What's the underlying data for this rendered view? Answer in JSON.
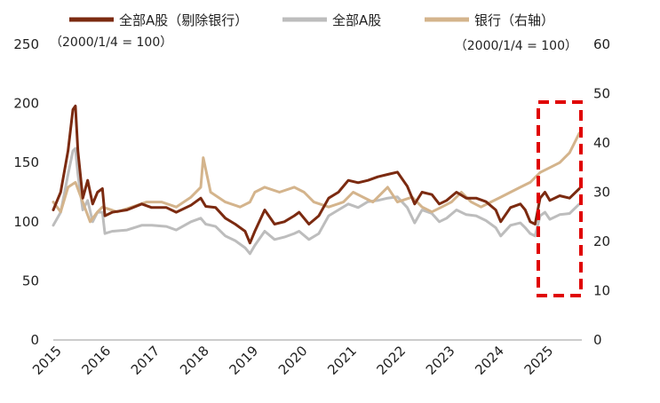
{
  "chart_data": {
    "type": "line",
    "x_ticks": [
      "2015",
      "2016",
      "2017",
      "2018",
      "2019",
      "2020",
      "2021",
      "2022",
      "2023",
      "2024",
      "2025"
    ],
    "x_range": [
      2015.0,
      2025.75
    ],
    "left_axis": {
      "range": [
        0,
        250
      ],
      "ticks": [
        "0",
        "50",
        "100",
        "150",
        "200",
        "250"
      ],
      "note": "（2000/1/4 = 100）"
    },
    "right_axis": {
      "range": [
        0,
        60
      ],
      "ticks": [
        "0",
        "10",
        "20",
        "30",
        "40",
        "50",
        "60"
      ],
      "note": "（2000/1/4 = 100）"
    },
    "legend_position": "top",
    "grid": false,
    "series": [
      {
        "name": "全部A股（剔除银行）",
        "axis": "left",
        "color": "#7B2A10",
        "points": [
          [
            2015.0,
            110
          ],
          [
            2015.15,
            125
          ],
          [
            2015.3,
            160
          ],
          [
            2015.4,
            195
          ],
          [
            2015.45,
            198
          ],
          [
            2015.5,
            160
          ],
          [
            2015.6,
            120
          ],
          [
            2015.7,
            135
          ],
          [
            2015.8,
            115
          ],
          [
            2015.9,
            125
          ],
          [
            2016.0,
            128
          ],
          [
            2016.05,
            105
          ],
          [
            2016.2,
            108
          ],
          [
            2016.5,
            110
          ],
          [
            2016.8,
            115
          ],
          [
            2017.0,
            112
          ],
          [
            2017.3,
            112
          ],
          [
            2017.5,
            108
          ],
          [
            2017.8,
            114
          ],
          [
            2018.0,
            120
          ],
          [
            2018.1,
            113
          ],
          [
            2018.3,
            112
          ],
          [
            2018.5,
            103
          ],
          [
            2018.7,
            98
          ],
          [
            2018.9,
            92
          ],
          [
            2019.0,
            82
          ],
          [
            2019.1,
            92
          ],
          [
            2019.3,
            110
          ],
          [
            2019.5,
            98
          ],
          [
            2019.7,
            100
          ],
          [
            2019.9,
            105
          ],
          [
            2020.0,
            108
          ],
          [
            2020.2,
            98
          ],
          [
            2020.4,
            105
          ],
          [
            2020.6,
            120
          ],
          [
            2020.8,
            125
          ],
          [
            2021.0,
            135
          ],
          [
            2021.2,
            133
          ],
          [
            2021.4,
            135
          ],
          [
            2021.6,
            138
          ],
          [
            2021.8,
            140
          ],
          [
            2022.0,
            142
          ],
          [
            2022.2,
            130
          ],
          [
            2022.35,
            115
          ],
          [
            2022.5,
            125
          ],
          [
            2022.7,
            123
          ],
          [
            2022.85,
            115
          ],
          [
            2023.0,
            118
          ],
          [
            2023.2,
            125
          ],
          [
            2023.4,
            120
          ],
          [
            2023.6,
            120
          ],
          [
            2023.8,
            117
          ],
          [
            2024.0,
            110
          ],
          [
            2024.1,
            100
          ],
          [
            2024.3,
            112
          ],
          [
            2024.5,
            115
          ],
          [
            2024.6,
            110
          ],
          [
            2024.7,
            100
          ],
          [
            2024.8,
            98
          ],
          [
            2024.9,
            120
          ],
          [
            2025.0,
            125
          ],
          [
            2025.1,
            118
          ],
          [
            2025.3,
            122
          ],
          [
            2025.5,
            120
          ],
          [
            2025.7,
            128
          ]
        ]
      },
      {
        "name": "全部A股",
        "axis": "left",
        "color": "#BDBDBD",
        "points": [
          [
            2015.0,
            97
          ],
          [
            2015.15,
            108
          ],
          [
            2015.3,
            140
          ],
          [
            2015.4,
            160
          ],
          [
            2015.45,
            162
          ],
          [
            2015.5,
            140
          ],
          [
            2015.6,
            110
          ],
          [
            2015.7,
            118
          ],
          [
            2015.8,
            100
          ],
          [
            2015.9,
            108
          ],
          [
            2016.0,
            108
          ],
          [
            2016.05,
            90
          ],
          [
            2016.2,
            92
          ],
          [
            2016.5,
            93
          ],
          [
            2016.8,
            97
          ],
          [
            2017.0,
            97
          ],
          [
            2017.3,
            96
          ],
          [
            2017.5,
            93
          ],
          [
            2017.8,
            100
          ],
          [
            2018.0,
            103
          ],
          [
            2018.1,
            98
          ],
          [
            2018.3,
            96
          ],
          [
            2018.5,
            88
          ],
          [
            2018.7,
            84
          ],
          [
            2018.9,
            78
          ],
          [
            2019.0,
            73
          ],
          [
            2019.1,
            80
          ],
          [
            2019.3,
            92
          ],
          [
            2019.5,
            85
          ],
          [
            2019.7,
            87
          ],
          [
            2019.9,
            90
          ],
          [
            2020.0,
            92
          ],
          [
            2020.2,
            85
          ],
          [
            2020.4,
            90
          ],
          [
            2020.6,
            105
          ],
          [
            2020.8,
            110
          ],
          [
            2021.0,
            115
          ],
          [
            2021.2,
            112
          ],
          [
            2021.4,
            117
          ],
          [
            2021.6,
            118
          ],
          [
            2021.8,
            120
          ],
          [
            2022.0,
            121
          ],
          [
            2022.2,
            112
          ],
          [
            2022.35,
            99
          ],
          [
            2022.5,
            110
          ],
          [
            2022.7,
            107
          ],
          [
            2022.85,
            100
          ],
          [
            2023.0,
            103
          ],
          [
            2023.2,
            110
          ],
          [
            2023.4,
            106
          ],
          [
            2023.6,
            105
          ],
          [
            2023.8,
            101
          ],
          [
            2024.0,
            95
          ],
          [
            2024.1,
            88
          ],
          [
            2024.3,
            97
          ],
          [
            2024.5,
            99
          ],
          [
            2024.6,
            95
          ],
          [
            2024.7,
            90
          ],
          [
            2024.8,
            88
          ],
          [
            2024.9,
            105
          ],
          [
            2025.0,
            108
          ],
          [
            2025.1,
            102
          ],
          [
            2025.3,
            106
          ],
          [
            2025.5,
            107
          ],
          [
            2025.7,
            115
          ]
        ]
      },
      {
        "name": "银行（右轴）",
        "axis": "right",
        "color": "#D4B48C",
        "points": [
          [
            2015.0,
            28
          ],
          [
            2015.15,
            26
          ],
          [
            2015.3,
            31
          ],
          [
            2015.45,
            32
          ],
          [
            2015.6,
            28
          ],
          [
            2015.75,
            24
          ],
          [
            2015.9,
            26
          ],
          [
            2016.0,
            27
          ],
          [
            2016.3,
            26
          ],
          [
            2016.6,
            27
          ],
          [
            2016.9,
            28
          ],
          [
            2017.2,
            28
          ],
          [
            2017.5,
            27
          ],
          [
            2017.8,
            29
          ],
          [
            2018.0,
            31
          ],
          [
            2018.05,
            37
          ],
          [
            2018.2,
            30
          ],
          [
            2018.5,
            28
          ],
          [
            2018.8,
            27
          ],
          [
            2019.0,
            28
          ],
          [
            2019.1,
            30
          ],
          [
            2019.3,
            31
          ],
          [
            2019.6,
            30
          ],
          [
            2019.9,
            31
          ],
          [
            2020.1,
            30
          ],
          [
            2020.3,
            28
          ],
          [
            2020.6,
            27
          ],
          [
            2020.9,
            28
          ],
          [
            2021.1,
            30
          ],
          [
            2021.3,
            29
          ],
          [
            2021.5,
            28
          ],
          [
            2021.8,
            31
          ],
          [
            2022.0,
            28
          ],
          [
            2022.3,
            29
          ],
          [
            2022.5,
            27
          ],
          [
            2022.7,
            26
          ],
          [
            2022.9,
            27
          ],
          [
            2023.1,
            28
          ],
          [
            2023.3,
            30
          ],
          [
            2023.5,
            28
          ],
          [
            2023.7,
            27
          ],
          [
            2023.9,
            28
          ],
          [
            2024.1,
            29
          ],
          [
            2024.3,
            30
          ],
          [
            2024.5,
            31
          ],
          [
            2024.7,
            32
          ],
          [
            2024.9,
            34
          ],
          [
            2025.1,
            35
          ],
          [
            2025.3,
            36
          ],
          [
            2025.5,
            38
          ],
          [
            2025.7,
            42
          ]
        ]
      }
    ]
  }
}
